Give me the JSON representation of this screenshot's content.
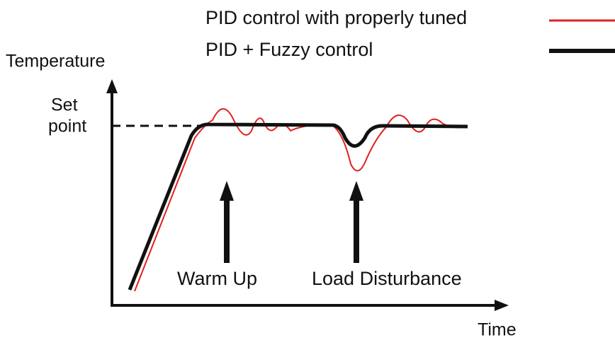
{
  "legend": [
    {
      "label": "PID control with properly tuned"
    },
    {
      "label": "PID + Fuzzy control"
    }
  ],
  "axes": {
    "y_label": "Temperature",
    "x_label": "Time"
  },
  "set_point": {
    "line1": "Set",
    "line2": "point"
  },
  "annotations": [
    "Warm Up",
    "Load Disturbance"
  ]
}
